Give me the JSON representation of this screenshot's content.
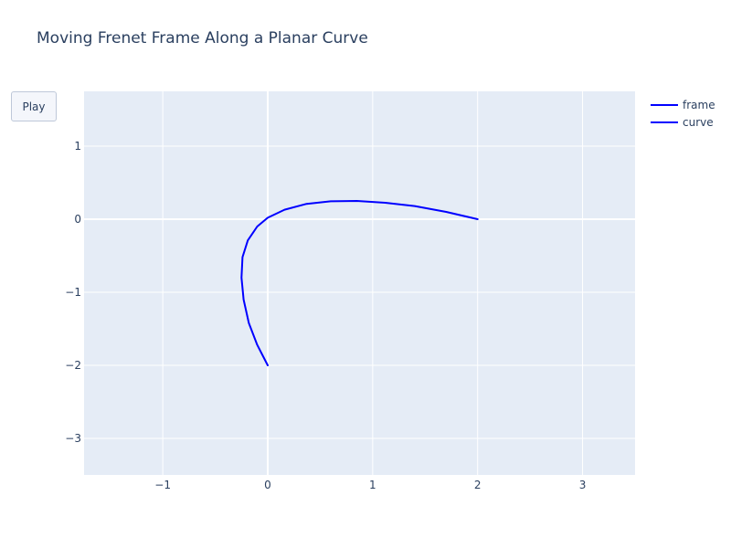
{
  "title": "Moving Frenet Frame Along a Planar Curve",
  "controls": {
    "play_label": "Play"
  },
  "colors": {
    "plot_bg": "#e5ecf6",
    "grid": "#ffffff",
    "text": "#2a3f5f",
    "frame_line": "#0000ff",
    "curve_line": "#0000ff"
  },
  "chart_data": {
    "type": "line",
    "title": "Moving Frenet Frame Along a Planar Curve",
    "xlabel": "",
    "ylabel": "",
    "xlim": [
      -1.75,
      3.5
    ],
    "ylim": [
      -3.5,
      1.75
    ],
    "x_ticks": [
      -1,
      0,
      1,
      2,
      3
    ],
    "y_ticks": [
      1,
      0,
      -1,
      -2,
      -3
    ],
    "grid": true,
    "legend_position": "top-right",
    "series": [
      {
        "name": "frame",
        "x": [],
        "y": []
      },
      {
        "name": "curve",
        "x": [
          0.0,
          -0.1,
          -0.18,
          -0.23,
          -0.25,
          -0.24,
          -0.19,
          -0.1,
          0.0,
          0.16,
          0.37,
          0.6,
          0.85,
          1.12,
          1.4,
          1.7,
          2.0
        ],
        "y": [
          -2.0,
          -1.72,
          -1.42,
          -1.1,
          -0.8,
          -0.52,
          -0.29,
          -0.1,
          0.02,
          0.13,
          0.21,
          0.245,
          0.25,
          0.225,
          0.18,
          0.1,
          0.0
        ]
      }
    ]
  }
}
